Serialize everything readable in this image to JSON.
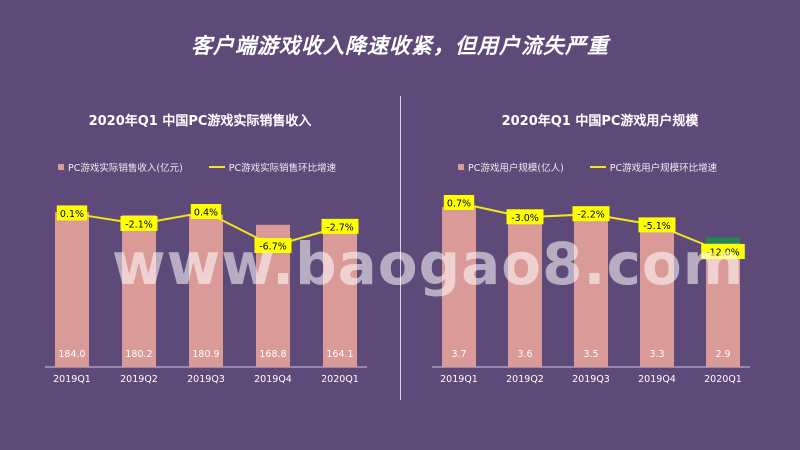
{
  "slide": {
    "title": "客户端游戏收入降速收紧，但用户流失严重",
    "watermark": "www.baogao8.com"
  },
  "chart_data": [
    {
      "type": "bar",
      "title": "2020年Q1 中国PC游戏实际销售收入",
      "categories": [
        "2019Q1",
        "2019Q2",
        "2019Q3",
        "2019Q4",
        "2020Q1"
      ],
      "series": [
        {
          "name": "PC游戏实际销售收入(亿元)",
          "type": "bar",
          "values": [
            184.0,
            180.2,
            180.9,
            168.8,
            164.1
          ]
        },
        {
          "name": "PC游戏实际销售环比增速",
          "type": "line",
          "values": [
            0.1,
            -2.1,
            0.4,
            -6.7,
            -2.7
          ],
          "unit": "%"
        }
      ],
      "legend_position": "top-left",
      "colors": {
        "bar": "#d99a98",
        "line": "#f5e41d",
        "label_bg": "#ffff00"
      }
    },
    {
      "type": "bar",
      "title": "2020年Q1 中国PC游戏用户规模",
      "categories": [
        "2019Q1",
        "2019Q2",
        "2019Q3",
        "2019Q4",
        "2020Q1"
      ],
      "series": [
        {
          "name": "PC游戏用户规模(亿人)",
          "type": "bar",
          "values": [
            3.7,
            3.6,
            3.5,
            3.3,
            2.9
          ]
        },
        {
          "name": "PC游戏用户规模环比增速",
          "type": "line",
          "values": [
            0.7,
            -3.0,
            -2.2,
            -5.1,
            -12.0
          ],
          "unit": "%"
        }
      ],
      "legend_position": "top-left",
      "colors": {
        "bar": "#d99a98",
        "line": "#f5e41d",
        "label_bg": "#ffff00",
        "highlight": "#1f8a50"
      }
    }
  ]
}
